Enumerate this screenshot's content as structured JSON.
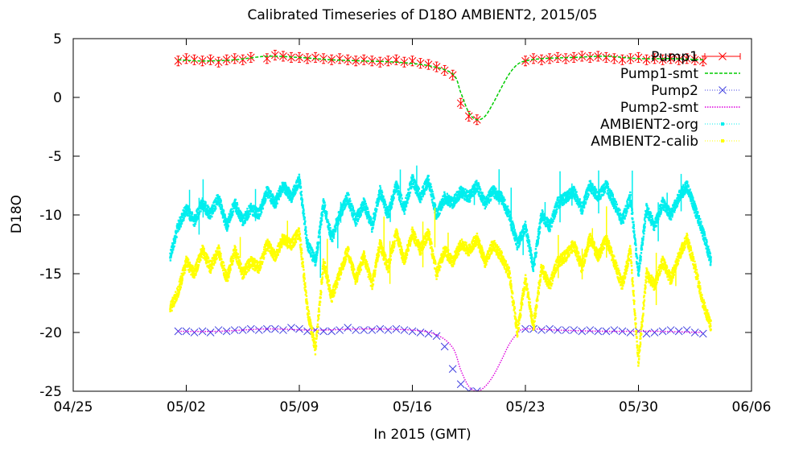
{
  "chart_data": {
    "type": "line",
    "title": "Calibrated Timeseries of D18O AMBIENT2, 2015/05",
    "xlabel": "In 2015 (GMT)",
    "ylabel": "D18O",
    "xlim": [
      "2015-04-25",
      "2015-06-06"
    ],
    "ylim": [
      -25,
      5
    ],
    "x_ticks": [
      "04/25",
      "05/02",
      "05/09",
      "05/16",
      "05/23",
      "05/30",
      "06/06"
    ],
    "y_ticks": [
      "5",
      "0",
      "-5",
      "-10",
      "-15",
      "-20",
      "-25"
    ],
    "grid": false,
    "legend_position": "top-right",
    "series": [
      {
        "name": "Pump1",
        "style": "points-errorbars",
        "marker": "x",
        "color": "#ff0000",
        "x": [
          "2015-05-01 12:00",
          "2015-05-02 00:00",
          "2015-05-02 12:00",
          "2015-05-03 00:00",
          "2015-05-03 12:00",
          "2015-05-04 00:00",
          "2015-05-04 12:00",
          "2015-05-05 00:00",
          "2015-05-05 12:00",
          "2015-05-06 00:00",
          "2015-05-07 00:00",
          "2015-05-07 12:00",
          "2015-05-08 00:00",
          "2015-05-08 12:00",
          "2015-05-09 00:00",
          "2015-05-09 12:00",
          "2015-05-10 00:00",
          "2015-05-10 12:00",
          "2015-05-11 00:00",
          "2015-05-11 12:00",
          "2015-05-12 00:00",
          "2015-05-12 12:00",
          "2015-05-13 00:00",
          "2015-05-13 12:00",
          "2015-05-14 00:00",
          "2015-05-14 12:00",
          "2015-05-15 00:00",
          "2015-05-15 12:00",
          "2015-05-16 00:00",
          "2015-05-16 12:00",
          "2015-05-17 00:00",
          "2015-05-17 12:00",
          "2015-05-18 00:00",
          "2015-05-18 12:00",
          "2015-05-19 00:00",
          "2015-05-19 12:00",
          "2015-05-20 00:00",
          "2015-05-23 00:00",
          "2015-05-23 12:00",
          "2015-05-24 00:00",
          "2015-05-24 12:00",
          "2015-05-25 00:00",
          "2015-05-25 12:00",
          "2015-05-26 00:00",
          "2015-05-26 12:00",
          "2015-05-27 00:00",
          "2015-05-27 12:00",
          "2015-05-28 00:00",
          "2015-05-28 12:00",
          "2015-05-29 00:00",
          "2015-05-29 12:00",
          "2015-05-30 00:00",
          "2015-05-30 12:00",
          "2015-05-31 00:00",
          "2015-05-31 12:00",
          "2015-06-01 00:00",
          "2015-06-01 12:00",
          "2015-06-02 00:00",
          "2015-06-02 12:00",
          "2015-06-03 00:00"
        ],
        "y": [
          3.1,
          3.3,
          3.2,
          3.1,
          3.2,
          3.0,
          3.2,
          3.3,
          3.2,
          3.4,
          3.3,
          3.6,
          3.5,
          3.4,
          3.4,
          3.3,
          3.4,
          3.3,
          3.2,
          3.3,
          3.2,
          3.1,
          3.2,
          3.1,
          3.0,
          3.1,
          3.2,
          3.0,
          3.1,
          2.9,
          2.8,
          2.6,
          2.3,
          1.9,
          -0.5,
          -1.6,
          -1.9,
          3.1,
          3.3,
          3.2,
          3.3,
          3.4,
          3.3,
          3.4,
          3.5,
          3.4,
          3.5,
          3.4,
          3.3,
          3.2,
          3.3,
          3.4,
          3.2,
          3.3,
          3.2,
          3.3,
          3.2,
          3.3,
          3.2,
          3.1
        ]
      },
      {
        "name": "Pump1-smt",
        "style": "dashed-line",
        "color": "#00cc00",
        "x": [
          "2015-05-01 12:00",
          "2015-05-03 00:00",
          "2015-05-05 00:00",
          "2015-05-07 00:00",
          "2015-05-09 00:00",
          "2015-05-11 00:00",
          "2015-05-13 00:00",
          "2015-05-15 00:00",
          "2015-05-17 00:00",
          "2015-05-18 12:00",
          "2015-05-19 00:00",
          "2015-05-19 12:00",
          "2015-05-20 00:00",
          "2015-05-20 12:00",
          "2015-05-21 00:00",
          "2015-05-21 12:00",
          "2015-05-22 00:00",
          "2015-05-22 12:00",
          "2015-05-23 00:00",
          "2015-05-24 00:00",
          "2015-05-26 00:00",
          "2015-05-28 00:00",
          "2015-05-30 00:00",
          "2015-06-01 00:00",
          "2015-06-03 00:00"
        ],
        "y": [
          3.2,
          3.1,
          3.2,
          3.5,
          3.4,
          3.2,
          3.1,
          3.0,
          2.7,
          2.0,
          0.4,
          -1.3,
          -1.9,
          -1.6,
          -0.5,
          0.8,
          2.0,
          2.8,
          3.1,
          3.3,
          3.4,
          3.5,
          3.3,
          3.3,
          3.2
        ]
      },
      {
        "name": "Pump2",
        "style": "points",
        "marker": "x",
        "color": "#4040e0",
        "x": [
          "2015-05-01 12:00",
          "2015-05-02 00:00",
          "2015-05-02 12:00",
          "2015-05-03 00:00",
          "2015-05-03 12:00",
          "2015-05-04 00:00",
          "2015-05-04 12:00",
          "2015-05-05 00:00",
          "2015-05-05 12:00",
          "2015-05-06 00:00",
          "2015-05-06 12:00",
          "2015-05-07 00:00",
          "2015-05-07 12:00",
          "2015-05-08 00:00",
          "2015-05-08 12:00",
          "2015-05-09 00:00",
          "2015-05-09 12:00",
          "2015-05-10 00:00",
          "2015-05-10 12:00",
          "2015-05-11 00:00",
          "2015-05-11 12:00",
          "2015-05-12 00:00",
          "2015-05-12 12:00",
          "2015-05-13 00:00",
          "2015-05-13 12:00",
          "2015-05-14 00:00",
          "2015-05-14 12:00",
          "2015-05-15 00:00",
          "2015-05-15 12:00",
          "2015-05-16 00:00",
          "2015-05-16 12:00",
          "2015-05-17 00:00",
          "2015-05-17 12:00",
          "2015-05-18 00:00",
          "2015-05-18 12:00",
          "2015-05-19 00:00",
          "2015-05-19 12:00",
          "2015-05-20 00:00",
          "2015-05-23 00:00",
          "2015-05-23 12:00",
          "2015-05-24 00:00",
          "2015-05-24 12:00",
          "2015-05-25 00:00",
          "2015-05-25 12:00",
          "2015-05-26 00:00",
          "2015-05-26 12:00",
          "2015-05-27 00:00",
          "2015-05-27 12:00",
          "2015-05-28 00:00",
          "2015-05-28 12:00",
          "2015-05-29 00:00",
          "2015-05-29 12:00",
          "2015-05-30 00:00",
          "2015-05-30 12:00",
          "2015-05-31 00:00",
          "2015-05-31 12:00",
          "2015-06-01 00:00",
          "2015-06-01 12:00",
          "2015-06-02 00:00",
          "2015-06-02 12:00",
          "2015-06-03 00:00"
        ],
        "y": [
          -19.9,
          -19.9,
          -20.0,
          -19.9,
          -20.0,
          -19.8,
          -19.9,
          -19.8,
          -19.8,
          -19.7,
          -19.8,
          -19.7,
          -19.7,
          -19.8,
          -19.6,
          -19.7,
          -19.9,
          -19.8,
          -19.9,
          -19.9,
          -19.8,
          -19.6,
          -19.8,
          -19.8,
          -19.8,
          -19.7,
          -19.8,
          -19.7,
          -19.8,
          -19.9,
          -20.0,
          -20.1,
          -20.3,
          -21.2,
          -23.1,
          -24.4,
          -25.0,
          -25.0,
          -19.7,
          -19.7,
          -19.8,
          -19.7,
          -19.8,
          -19.8,
          -19.8,
          -19.9,
          -19.8,
          -19.9,
          -19.9,
          -19.8,
          -19.9,
          -20.0,
          -19.9,
          -20.1,
          -20.0,
          -19.9,
          -19.8,
          -19.9,
          -19.8,
          -20.0,
          -20.1
        ]
      },
      {
        "name": "Pump2-smt",
        "style": "dotted-line",
        "color": "#dd00dd",
        "x": [
          "2015-05-01 12:00",
          "2015-05-04 00:00",
          "2015-05-07 00:00",
          "2015-05-10 00:00",
          "2015-05-13 00:00",
          "2015-05-16 00:00",
          "2015-05-17 12:00",
          "2015-05-18 12:00",
          "2015-05-19 00:00",
          "2015-05-19 12:00",
          "2015-05-20 00:00",
          "2015-05-20 12:00",
          "2015-05-21 00:00",
          "2015-05-21 12:00",
          "2015-05-22 00:00",
          "2015-05-22 12:00",
          "2015-05-23 00:00",
          "2015-05-25 00:00",
          "2015-05-28 00:00",
          "2015-05-31 00:00",
          "2015-06-03 00:00"
        ],
        "y": [
          -19.9,
          -19.9,
          -19.7,
          -19.8,
          -19.7,
          -19.8,
          -20.2,
          -21.3,
          -23.2,
          -24.6,
          -25.0,
          -24.6,
          -23.7,
          -22.4,
          -21.0,
          -20.1,
          -19.7,
          -19.8,
          -19.9,
          -19.9,
          -20.0
        ]
      },
      {
        "name": "AMBIENT2-org",
        "style": "points",
        "marker": "dot",
        "color": "#00eeee",
        "x": [
          "2015-05-01 00:00",
          "2015-05-01 12:00",
          "2015-05-02 00:00",
          "2015-05-02 12:00",
          "2015-05-03 00:00",
          "2015-05-03 12:00",
          "2015-05-04 00:00",
          "2015-05-04 12:00",
          "2015-05-05 00:00",
          "2015-05-05 12:00",
          "2015-05-06 00:00",
          "2015-05-06 12:00",
          "2015-05-07 00:00",
          "2015-05-07 12:00",
          "2015-05-08 00:00",
          "2015-05-08 12:00",
          "2015-05-09 00:00",
          "2015-05-09 12:00",
          "2015-05-10 00:00",
          "2015-05-10 12:00",
          "2015-05-11 00:00",
          "2015-05-11 12:00",
          "2015-05-12 00:00",
          "2015-05-12 12:00",
          "2015-05-13 00:00",
          "2015-05-13 12:00",
          "2015-05-14 00:00",
          "2015-05-14 12:00",
          "2015-05-15 00:00",
          "2015-05-15 12:00",
          "2015-05-16 00:00",
          "2015-05-16 12:00",
          "2015-05-17 00:00",
          "2015-05-17 12:00",
          "2015-05-18 00:00",
          "2015-05-18 12:00",
          "2015-05-19 00:00",
          "2015-05-19 12:00",
          "2015-05-20 00:00",
          "2015-05-20 12:00",
          "2015-05-21 00:00",
          "2015-05-21 12:00",
          "2015-05-22 00:00",
          "2015-05-22 12:00",
          "2015-05-23 00:00",
          "2015-05-23 12:00",
          "2015-05-24 00:00",
          "2015-05-24 12:00",
          "2015-05-25 00:00",
          "2015-05-25 12:00",
          "2015-05-26 00:00",
          "2015-05-26 12:00",
          "2015-05-27 00:00",
          "2015-05-27 12:00",
          "2015-05-28 00:00",
          "2015-05-28 12:00",
          "2015-05-29 00:00",
          "2015-05-29 12:00",
          "2015-05-30 00:00",
          "2015-05-30 12:00",
          "2015-05-31 00:00",
          "2015-05-31 12:00",
          "2015-06-01 00:00",
          "2015-06-01 12:00",
          "2015-06-02 00:00",
          "2015-06-02 12:00",
          "2015-06-03 00:00",
          "2015-06-03 12:00"
        ],
        "y": [
          -13.5,
          -11.0,
          -9.5,
          -10.5,
          -9.0,
          -10.0,
          -8.5,
          -11.0,
          -9.0,
          -10.5,
          -9.5,
          -10.0,
          -8.0,
          -9.0,
          -7.5,
          -8.5,
          -7.0,
          -12.5,
          -14.0,
          -9.0,
          -12.0,
          -10.0,
          -8.5,
          -10.5,
          -9.0,
          -11.0,
          -8.0,
          -10.0,
          -7.5,
          -9.5,
          -7.0,
          -8.5,
          -7.0,
          -10.0,
          -8.5,
          -9.0,
          -8.0,
          -8.5,
          -7.5,
          -9.0,
          -8.0,
          -8.5,
          -10.0,
          -12.5,
          -11.0,
          -14.5,
          -10.0,
          -11.0,
          -9.0,
          -8.5,
          -8.0,
          -9.5,
          -7.5,
          -8.5,
          -7.5,
          -9.0,
          -10.5,
          -8.5,
          -15.0,
          -9.5,
          -11.0,
          -9.0,
          -10.0,
          -8.5,
          -7.5,
          -9.5,
          -11.5,
          -14.0
        ]
      },
      {
        "name": "AMBIENT2-calib",
        "style": "points",
        "marker": "dot",
        "color": "#ffff00",
        "x": [
          "2015-05-01 00:00",
          "2015-05-01 12:00",
          "2015-05-02 00:00",
          "2015-05-02 12:00",
          "2015-05-03 00:00",
          "2015-05-03 12:00",
          "2015-05-04 00:00",
          "2015-05-04 12:00",
          "2015-05-05 00:00",
          "2015-05-05 12:00",
          "2015-05-06 00:00",
          "2015-05-06 12:00",
          "2015-05-07 00:00",
          "2015-05-07 12:00",
          "2015-05-08 00:00",
          "2015-05-08 12:00",
          "2015-05-09 00:00",
          "2015-05-09 12:00",
          "2015-05-10 00:00",
          "2015-05-10 12:00",
          "2015-05-11 00:00",
          "2015-05-11 12:00",
          "2015-05-12 00:00",
          "2015-05-12 12:00",
          "2015-05-13 00:00",
          "2015-05-13 12:00",
          "2015-05-14 00:00",
          "2015-05-14 12:00",
          "2015-05-15 00:00",
          "2015-05-15 12:00",
          "2015-05-16 00:00",
          "2015-05-16 12:00",
          "2015-05-17 00:00",
          "2015-05-17 12:00",
          "2015-05-18 00:00",
          "2015-05-18 12:00",
          "2015-05-19 00:00",
          "2015-05-19 12:00",
          "2015-05-20 00:00",
          "2015-05-20 12:00",
          "2015-05-21 00:00",
          "2015-05-21 12:00",
          "2015-05-22 00:00",
          "2015-05-22 12:00",
          "2015-05-23 00:00",
          "2015-05-23 12:00",
          "2015-05-24 00:00",
          "2015-05-24 12:00",
          "2015-05-25 00:00",
          "2015-05-25 12:00",
          "2015-05-26 00:00",
          "2015-05-26 12:00",
          "2015-05-27 00:00",
          "2015-05-27 12:00",
          "2015-05-28 00:00",
          "2015-05-28 12:00",
          "2015-05-29 00:00",
          "2015-05-29 12:00",
          "2015-05-30 00:00",
          "2015-05-30 12:00",
          "2015-05-31 00:00",
          "2015-05-31 12:00",
          "2015-06-01 00:00",
          "2015-06-01 12:00",
          "2015-06-02 00:00",
          "2015-06-02 12:00",
          "2015-06-03 00:00",
          "2015-06-03 12:00"
        ],
        "y": [
          -18.0,
          -16.5,
          -14.0,
          -15.0,
          -13.0,
          -14.5,
          -13.0,
          -15.5,
          -13.0,
          -15.0,
          -14.0,
          -14.5,
          -12.5,
          -13.5,
          -12.0,
          -12.5,
          -11.5,
          -18.0,
          -21.5,
          -14.0,
          -17.0,
          -15.0,
          -13.0,
          -15.5,
          -13.5,
          -16.0,
          -12.5,
          -14.5,
          -11.5,
          -14.0,
          -11.5,
          -13.0,
          -11.5,
          -15.0,
          -13.0,
          -14.0,
          -12.5,
          -13.0,
          -12.0,
          -14.0,
          -12.5,
          -13.5,
          -15.0,
          -20.0,
          -15.5,
          -19.5,
          -14.5,
          -16.0,
          -14.0,
          -13.5,
          -12.5,
          -14.5,
          -12.0,
          -13.5,
          -12.0,
          -14.0,
          -16.0,
          -13.0,
          -22.5,
          -15.0,
          -16.0,
          -14.0,
          -15.5,
          -13.5,
          -12.0,
          -14.5,
          -17.5,
          -19.5
        ]
      }
    ]
  }
}
